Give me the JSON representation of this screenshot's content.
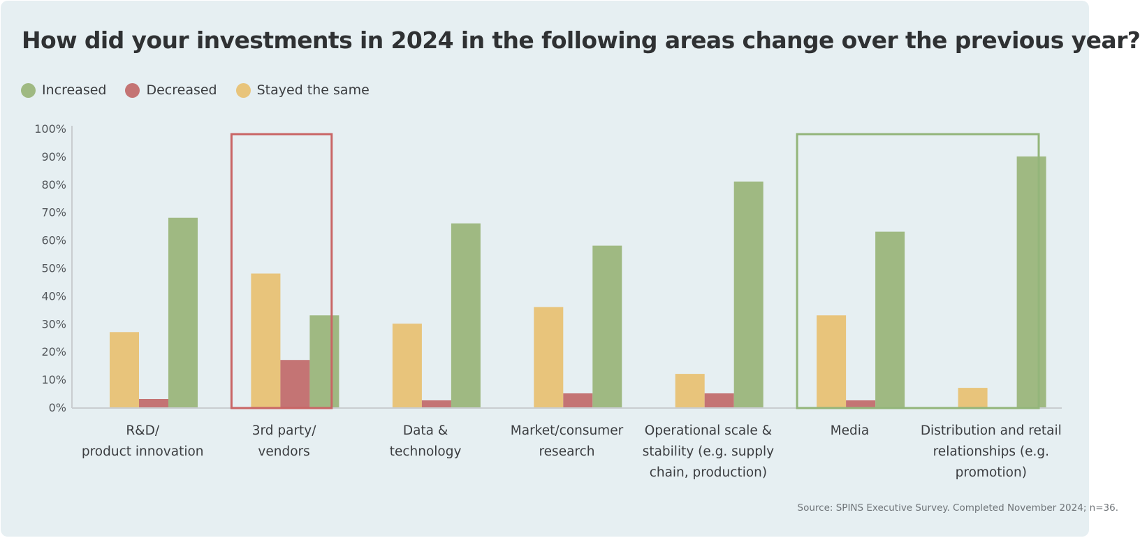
{
  "title": "How did your investments in 2024 in the following areas change over the previous year?",
  "source": "Source: SPINS Executive Survey. Completed November 2024; n=36.",
  "colors": {
    "background": "#e6eff2",
    "increased": "#9fb982",
    "decreased": "#c47474",
    "stayed": "#e8c47b",
    "axis": "#c9cdd0",
    "highlight_red": "#c96565",
    "highlight_green": "#93b57a"
  },
  "chart_data": {
    "type": "bar",
    "title": "How did your investments in 2024 in the following areas change over the previous year?",
    "categories": [
      [
        "R&D/",
        "product innovation"
      ],
      [
        "3rd party/",
        "vendors"
      ],
      [
        "Data &",
        "technology"
      ],
      [
        "Market/consumer",
        "research"
      ],
      [
        "Operational scale &",
        "stability (e.g. supply",
        "chain, production)"
      ],
      [
        "Media"
      ],
      [
        "Distribution and retail",
        "relationships (e.g.",
        "promotion)"
      ]
    ],
    "series": [
      {
        "name": "Stayed the same",
        "color": "#e8c47b",
        "values": [
          27,
          48,
          30,
          36,
          12,
          33,
          7
        ]
      },
      {
        "name": "Decreased",
        "color": "#c47474",
        "values": [
          3,
          17,
          2.5,
          5,
          5,
          2.5,
          0
        ]
      },
      {
        "name": "Increased",
        "color": "#9fb982",
        "values": [
          68,
          33,
          66,
          58,
          81,
          63,
          90
        ]
      }
    ],
    "ylim": [
      0,
      100
    ],
    "yticks": [
      "0%",
      "10%",
      "20%",
      "30%",
      "40%",
      "50%",
      "60%",
      "70%",
      "80%",
      "90%",
      "100%"
    ],
    "legend": [
      {
        "label": "Increased",
        "color": "#9fb982"
      },
      {
        "label": "Decreased",
        "color": "#c47474"
      },
      {
        "label": "Stayed the same",
        "color": "#e8c47b"
      }
    ],
    "legend_position": "top-left",
    "grid": false,
    "highlights": [
      {
        "categories": [
          1
        ],
        "color": "#c96565"
      },
      {
        "categories": [
          5,
          6
        ],
        "color": "#93b57a"
      }
    ]
  }
}
